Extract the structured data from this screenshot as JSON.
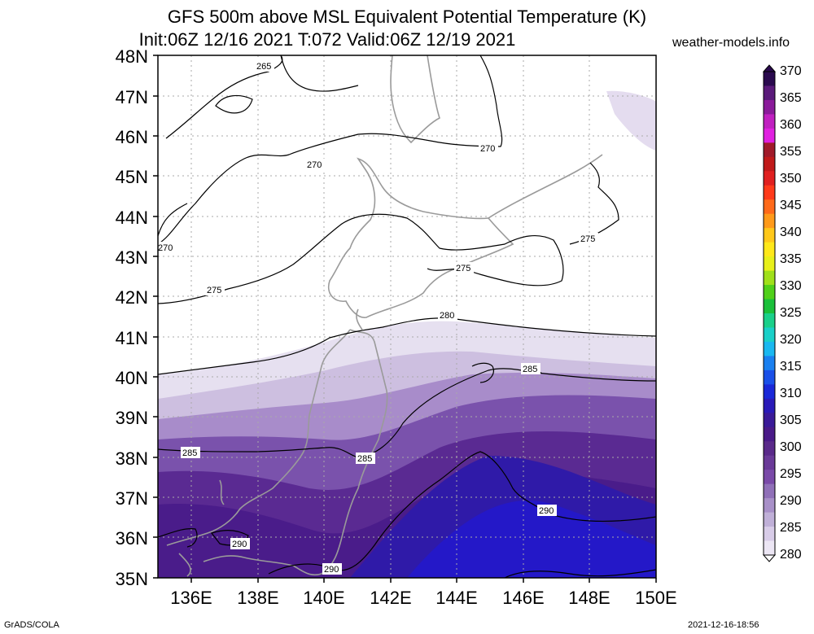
{
  "title_line1": "GFS 500m above MSL Equivalent Potential Temperature (K)",
  "title_line2": "Init:06Z 12/16 2021 T:072 Valid:06Z 12/19 2021",
  "site": "weather-models.info",
  "credit_left": "GrADS/COLA",
  "credit_right": "2021-12-16-18:56",
  "lat_labels": [
    "48N",
    "47N",
    "46N",
    "45N",
    "44N",
    "43N",
    "42N",
    "41N",
    "40N",
    "39N",
    "38N",
    "37N",
    "36N",
    "35N"
  ],
  "lon_labels": [
    "136E",
    "138E",
    "140E",
    "142E",
    "144E",
    "146E",
    "148E",
    "150E"
  ],
  "contour_labels": [
    "265",
    "270",
    "270",
    "270",
    "275",
    "275",
    "275",
    "280",
    "285",
    "285",
    "285",
    "290",
    "290",
    "290"
  ],
  "colorbar": {
    "labels": [
      "370",
      "365",
      "360",
      "355",
      "350",
      "345",
      "340",
      "335",
      "330",
      "325",
      "320",
      "315",
      "310",
      "305",
      "300",
      "295",
      "290",
      "285",
      "280"
    ],
    "colors": [
      "#2a0a4e",
      "#5a1a7a",
      "#8a1a9a",
      "#c020c0",
      "#e020e0",
      "#a01a2a",
      "#c01a1a",
      "#e02020",
      "#ff3a1a",
      "#ff6a1a",
      "#ff9a1a",
      "#ffc81a",
      "#ffe81a",
      "#e8f01a",
      "#a0e01a",
      "#50d01a",
      "#1ac03a",
      "#1ad08a",
      "#1ad0c8",
      "#1ab8f0",
      "#1a80f0",
      "#1a50e8",
      "#1a28d8",
      "#2a1ab8",
      "#3a1a98",
      "#4a1a88",
      "#5a2a8a",
      "#6a3a98",
      "#7a4aa8",
      "#9070b8",
      "#a890c8",
      "#c0b0d8",
      "#d8cce8",
      "#ece6f4"
    ]
  }
}
